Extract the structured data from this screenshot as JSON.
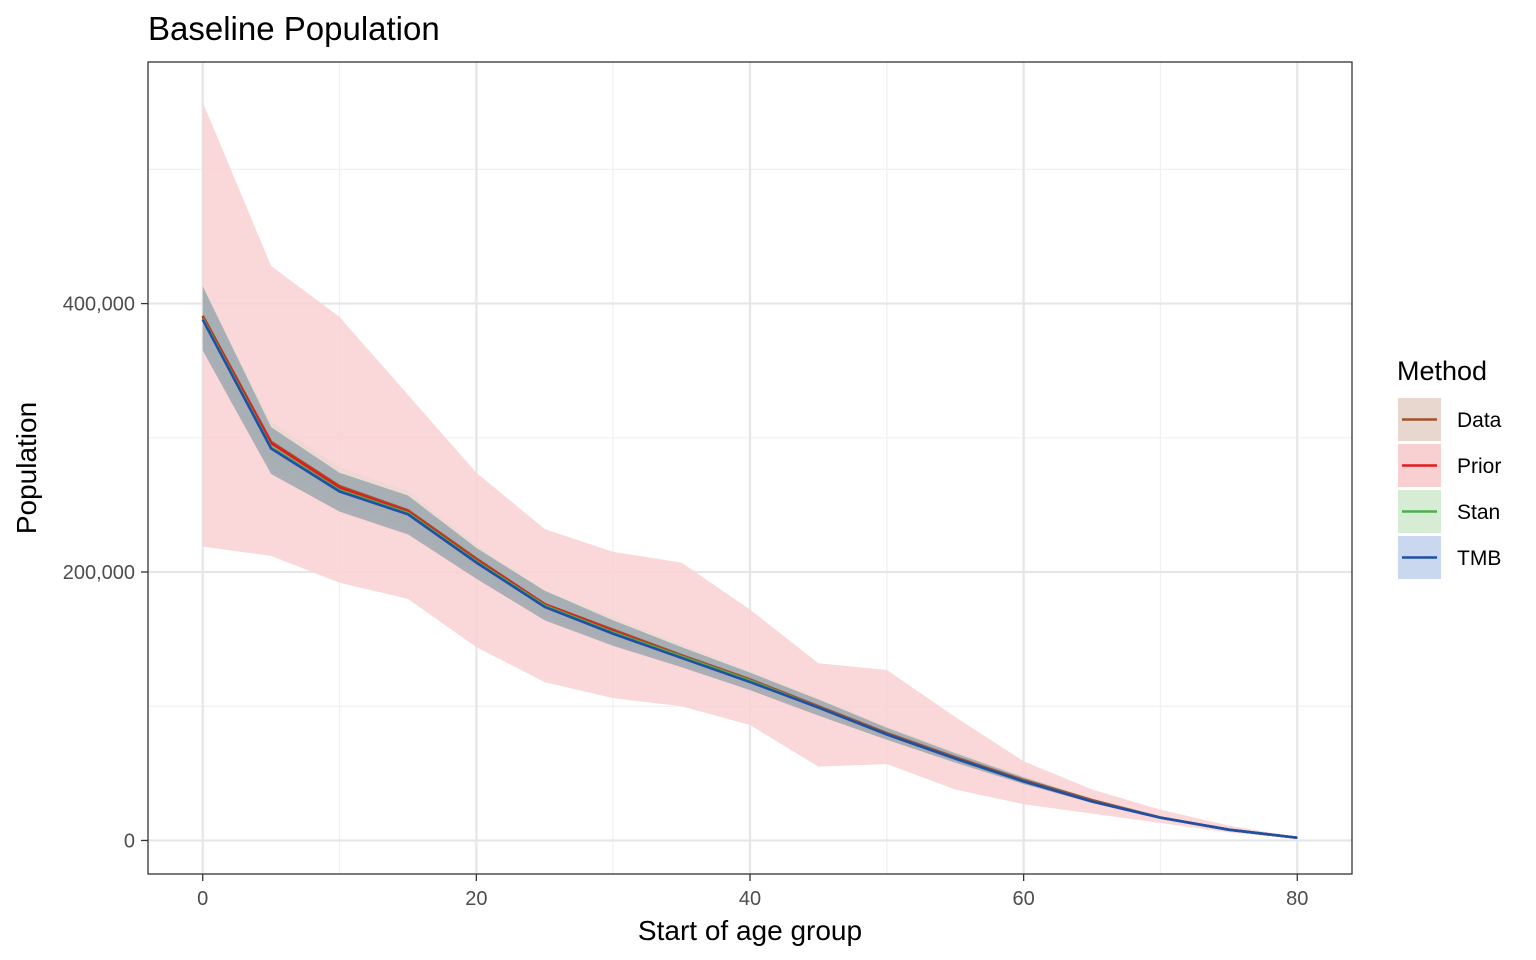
{
  "chart_data": {
    "type": "line",
    "title": "Baseline Population",
    "xlabel": "Start of age group",
    "ylabel": "Population",
    "xlim": [
      -4,
      84
    ],
    "ylim": [
      -25000,
      580000
    ],
    "x_ticks": [
      0,
      20,
      40,
      60,
      80
    ],
    "x_tick_labels": [
      "0",
      "20",
      "40",
      "60",
      "80"
    ],
    "y_ticks": [
      0,
      200000,
      400000
    ],
    "y_tick_labels": [
      "0",
      "200,000",
      "400,000"
    ],
    "grid": true,
    "legend": {
      "title": "Method",
      "position": "right",
      "entries": [
        "Data",
        "Prior",
        "Stan",
        "TMB"
      ]
    },
    "x": [
      0,
      5,
      10,
      15,
      20,
      25,
      30,
      35,
      40,
      45,
      50,
      55,
      60,
      65,
      70,
      75,
      80
    ],
    "series": [
      {
        "name": "Data",
        "color": "#a0522d",
        "band_color": "#e8d7cf",
        "values": [
          391000,
          297000,
          264000,
          246000,
          210000,
          176000,
          157000,
          138000,
          120000,
          100000,
          80000,
          62000,
          45000,
          30000,
          17000,
          8000,
          2000
        ],
        "lower": [
          372000,
          278000,
          250000,
          232000,
          198000,
          168000,
          148000,
          132000,
          114000,
          95000,
          76000,
          58000,
          42000,
          28000,
          16000,
          7500,
          1900
        ],
        "upper": [
          410000,
          312000,
          278000,
          260000,
          220000,
          186000,
          166000,
          146000,
          126000,
          106000,
          85000,
          66000,
          48000,
          32000,
          18000,
          8500,
          2100
        ]
      },
      {
        "name": "Prior",
        "color": "#e41a1c",
        "band_color": "#f9d0d2",
        "values": [
          390000,
          296000,
          263000,
          245000,
          209000,
          176000,
          156000,
          137000,
          119000,
          99000,
          79000,
          61000,
          44000,
          29000,
          17000,
          8000,
          2000
        ],
        "lower": [
          219000,
          212000,
          192000,
          180000,
          144000,
          118000,
          106000,
          100000,
          86000,
          55000,
          57000,
          38000,
          27000,
          20000,
          13000,
          6000,
          1500
        ],
        "upper": [
          550000,
          428000,
          390000,
          332000,
          274000,
          232000,
          215000,
          207000,
          172000,
          132000,
          127000,
          92000,
          59000,
          38000,
          23000,
          11000,
          2500
        ]
      },
      {
        "name": "Stan",
        "color": "#4daf4a",
        "band_color": "#d6ecd5",
        "values": [
          389000,
          293000,
          261000,
          244000,
          208000,
          175000,
          155000,
          137000,
          119000,
          99000,
          79000,
          61000,
          44000,
          29000,
          17000,
          8000,
          2000
        ],
        "lower": [
          366000,
          274000,
          246000,
          229000,
          196000,
          165000,
          146000,
          130000,
          113000,
          94000,
          75000,
          58000,
          42000,
          28000,
          16000,
          7500,
          1900
        ],
        "upper": [
          414000,
          309000,
          275000,
          258000,
          219000,
          187000,
          165000,
          145000,
          126000,
          105000,
          84000,
          65000,
          47000,
          31000,
          18000,
          8500,
          2100
        ]
      },
      {
        "name": "TMB",
        "color": "#1f4fa8",
        "band_color": "#c9d8ee",
        "values": [
          388000,
          292000,
          260000,
          243000,
          207000,
          174000,
          154000,
          136000,
          118000,
          99000,
          79000,
          61000,
          44000,
          29000,
          17000,
          8000,
          2000
        ],
        "lower": [
          365000,
          273000,
          245000,
          228000,
          195000,
          164000,
          145000,
          129000,
          112000,
          93000,
          75000,
          58000,
          42000,
          28000,
          16000,
          7500,
          1900
        ],
        "upper": [
          413000,
          308000,
          274000,
          257000,
          218000,
          186000,
          164000,
          144000,
          125000,
          105000,
          84000,
          65000,
          47000,
          31000,
          18000,
          8500,
          2100
        ]
      }
    ]
  }
}
